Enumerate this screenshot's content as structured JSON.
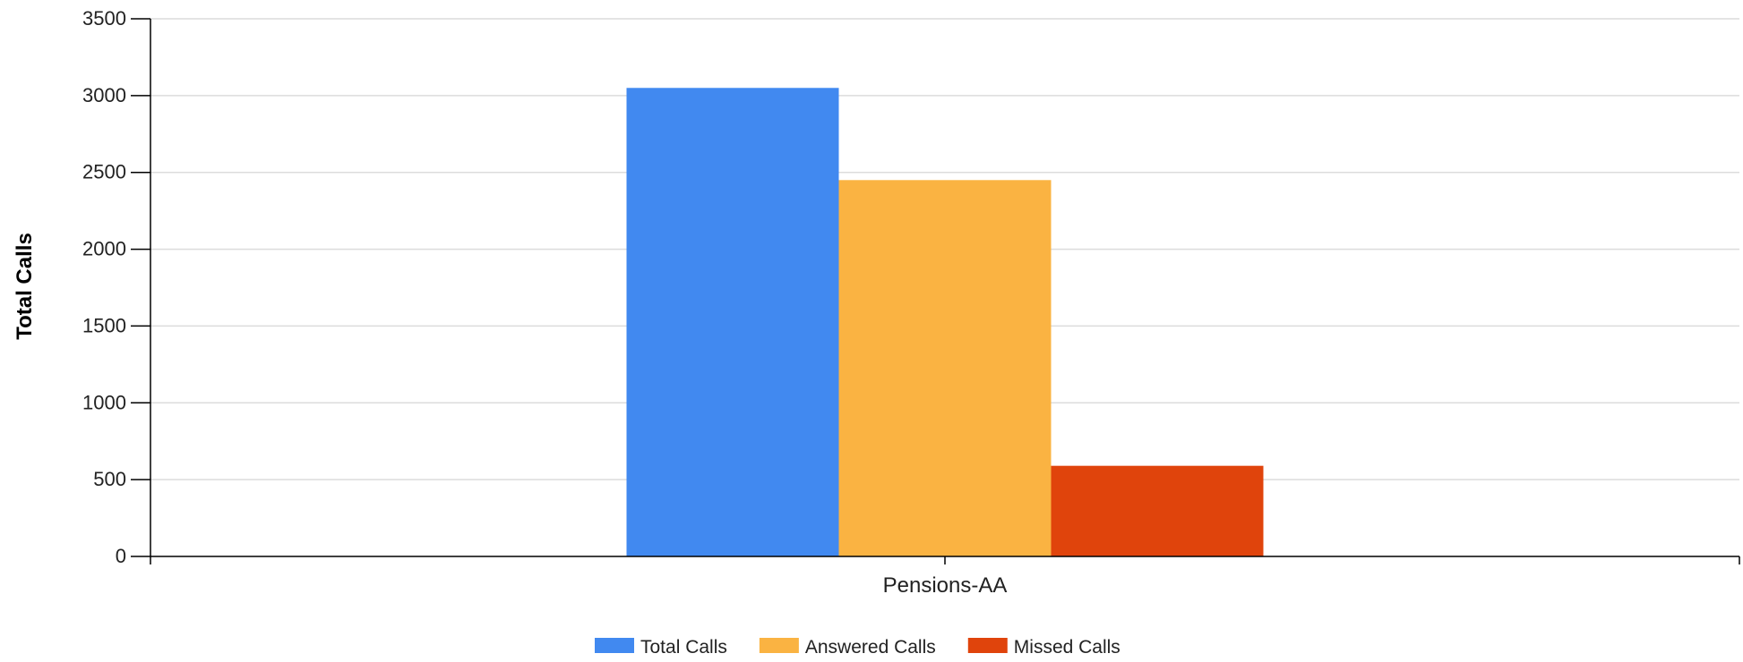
{
  "chart_data": {
    "type": "bar",
    "categories": [
      "Pensions-AA"
    ],
    "series": [
      {
        "name": "Total Calls",
        "values": [
          3050
        ],
        "color": "#4189F0"
      },
      {
        "name": "Answered Calls",
        "values": [
          2450
        ],
        "color": "#FAB342"
      },
      {
        "name": "Missed Calls",
        "values": [
          590
        ],
        "color": "#E0440C"
      }
    ],
    "ylabel": "Total Calls",
    "xlabel": "",
    "ylim": [
      0,
      3500
    ],
    "yticks": [
      0,
      500,
      1000,
      1500,
      2000,
      2500,
      3000,
      3500
    ],
    "grid": true,
    "legend": "bottom-center"
  }
}
